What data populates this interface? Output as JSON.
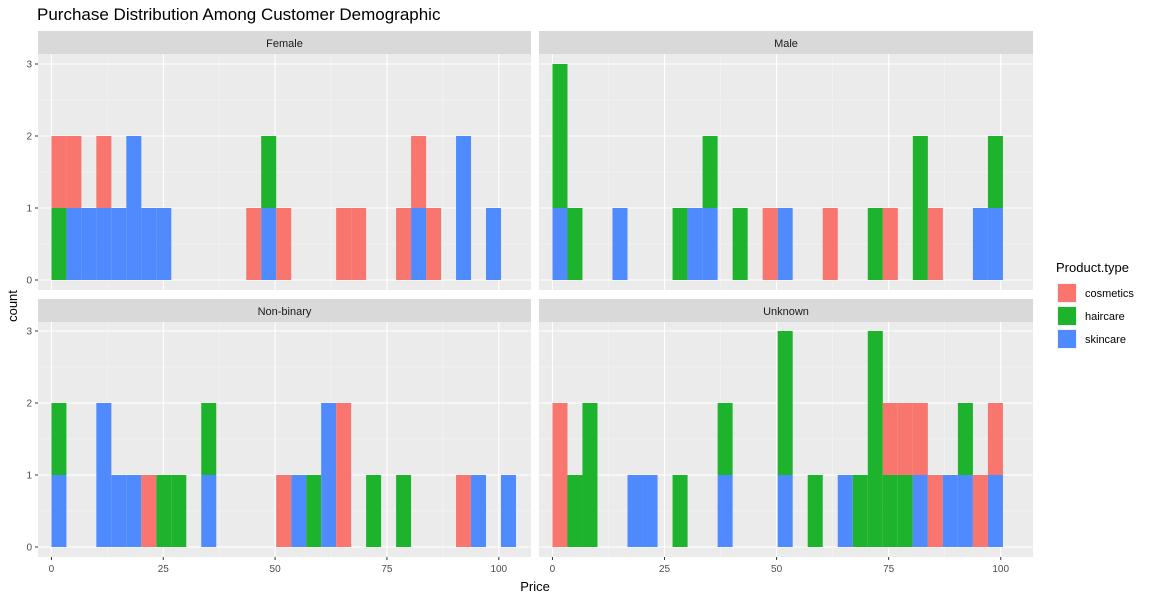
{
  "chart_data": {
    "type": "bar",
    "subtype": "faceted stacked histogram",
    "title": "Purchase Distribution Among Customer Demographic",
    "xlabel": "Price",
    "ylabel": "count",
    "xlim": [
      0,
      100
    ],
    "ylim": [
      0,
      3
    ],
    "x_ticks": [
      0,
      25,
      50,
      75,
      100
    ],
    "y_ticks": [
      0,
      1,
      2,
      3
    ],
    "bin_width": 3.35,
    "grid": true,
    "legend": {
      "title": "Product.type",
      "position": "right",
      "entries": [
        {
          "name": "cosmetics",
          "color": "#F8766D"
        },
        {
          "name": "haircare",
          "color": "#1DB32C"
        },
        {
          "name": "skincare",
          "color": "#4F8BFF"
        }
      ]
    },
    "series_names": [
      "cosmetics",
      "haircare",
      "skincare"
    ],
    "panels": [
      {
        "label": "Female",
        "bins": [
          {
            "x": 1.68,
            "cosmetics": 1,
            "haircare": 1,
            "skincare": 0
          },
          {
            "x": 5.02,
            "cosmetics": 1,
            "haircare": 0,
            "skincare": 1
          },
          {
            "x": 8.37,
            "cosmetics": 0,
            "haircare": 0,
            "skincare": 1
          },
          {
            "x": 11.72,
            "cosmetics": 1,
            "haircare": 0,
            "skincare": 1
          },
          {
            "x": 15.07,
            "cosmetics": 0,
            "haircare": 0,
            "skincare": 1
          },
          {
            "x": 18.42,
            "cosmetics": 0,
            "haircare": 0,
            "skincare": 2
          },
          {
            "x": 21.77,
            "cosmetics": 0,
            "haircare": 0,
            "skincare": 1
          },
          {
            "x": 25.12,
            "cosmetics": 0,
            "haircare": 0,
            "skincare": 1
          },
          {
            "x": 45.22,
            "cosmetics": 1,
            "haircare": 0,
            "skincare": 0
          },
          {
            "x": 48.57,
            "cosmetics": 0,
            "haircare": 1,
            "skincare": 1
          },
          {
            "x": 51.92,
            "cosmetics": 1,
            "haircare": 0,
            "skincare": 0
          },
          {
            "x": 65.32,
            "cosmetics": 1,
            "haircare": 0,
            "skincare": 0
          },
          {
            "x": 68.67,
            "cosmetics": 1,
            "haircare": 0,
            "skincare": 0
          },
          {
            "x": 78.72,
            "cosmetics": 1,
            "haircare": 0,
            "skincare": 0
          },
          {
            "x": 82.07,
            "cosmetics": 1,
            "haircare": 0,
            "skincare": 1
          },
          {
            "x": 85.42,
            "cosmetics": 1,
            "haircare": 0,
            "skincare": 0
          },
          {
            "x": 92.12,
            "cosmetics": 0,
            "haircare": 0,
            "skincare": 2
          },
          {
            "x": 98.82,
            "cosmetics": 0,
            "haircare": 0,
            "skincare": 1
          }
        ]
      },
      {
        "label": "Male",
        "bins": [
          {
            "x": 1.68,
            "cosmetics": 0,
            "haircare": 2,
            "skincare": 1
          },
          {
            "x": 5.02,
            "cosmetics": 0,
            "haircare": 1,
            "skincare": 0
          },
          {
            "x": 15.07,
            "cosmetics": 0,
            "haircare": 0,
            "skincare": 1
          },
          {
            "x": 28.47,
            "cosmetics": 0,
            "haircare": 1,
            "skincare": 0
          },
          {
            "x": 31.82,
            "cosmetics": 0,
            "haircare": 0,
            "skincare": 1
          },
          {
            "x": 35.17,
            "cosmetics": 0,
            "haircare": 1,
            "skincare": 1
          },
          {
            "x": 41.87,
            "cosmetics": 0,
            "haircare": 1,
            "skincare": 0
          },
          {
            "x": 48.57,
            "cosmetics": 1,
            "haircare": 0,
            "skincare": 0
          },
          {
            "x": 51.92,
            "cosmetics": 0,
            "haircare": 0,
            "skincare": 1
          },
          {
            "x": 61.97,
            "cosmetics": 1,
            "haircare": 0,
            "skincare": 0
          },
          {
            "x": 72.02,
            "cosmetics": 0,
            "haircare": 1,
            "skincare": 0
          },
          {
            "x": 75.37,
            "cosmetics": 1,
            "haircare": 0,
            "skincare": 0
          },
          {
            "x": 82.07,
            "cosmetics": 0,
            "haircare": 2,
            "skincare": 0
          },
          {
            "x": 85.42,
            "cosmetics": 1,
            "haircare": 0,
            "skincare": 0
          },
          {
            "x": 95.47,
            "cosmetics": 0,
            "haircare": 0,
            "skincare": 1
          },
          {
            "x": 98.82,
            "cosmetics": 0,
            "haircare": 1,
            "skincare": 1
          }
        ]
      },
      {
        "label": "Non-binary",
        "bins": [
          {
            "x": 1.68,
            "cosmetics": 0,
            "haircare": 1,
            "skincare": 1
          },
          {
            "x": 11.72,
            "cosmetics": 0,
            "haircare": 0,
            "skincare": 2
          },
          {
            "x": 15.07,
            "cosmetics": 0,
            "haircare": 0,
            "skincare": 1
          },
          {
            "x": 18.42,
            "cosmetics": 0,
            "haircare": 0,
            "skincare": 1
          },
          {
            "x": 21.77,
            "cosmetics": 1,
            "haircare": 0,
            "skincare": 0
          },
          {
            "x": 25.12,
            "cosmetics": 0,
            "haircare": 1,
            "skincare": 0
          },
          {
            "x": 28.47,
            "cosmetics": 0,
            "haircare": 1,
            "skincare": 0
          },
          {
            "x": 35.17,
            "cosmetics": 0,
            "haircare": 1,
            "skincare": 1
          },
          {
            "x": 51.92,
            "cosmetics": 1,
            "haircare": 0,
            "skincare": 0
          },
          {
            "x": 55.27,
            "cosmetics": 0,
            "haircare": 0,
            "skincare": 1
          },
          {
            "x": 58.62,
            "cosmetics": 0,
            "haircare": 1,
            "skincare": 0
          },
          {
            "x": 61.97,
            "cosmetics": 0,
            "haircare": 0,
            "skincare": 2
          },
          {
            "x": 65.32,
            "cosmetics": 2,
            "haircare": 0,
            "skincare": 0
          },
          {
            "x": 72.02,
            "cosmetics": 0,
            "haircare": 1,
            "skincare": 0
          },
          {
            "x": 78.72,
            "cosmetics": 0,
            "haircare": 1,
            "skincare": 0
          },
          {
            "x": 92.12,
            "cosmetics": 1,
            "haircare": 0,
            "skincare": 0
          },
          {
            "x": 95.47,
            "cosmetics": 0,
            "haircare": 0,
            "skincare": 1
          },
          {
            "x": 102.17,
            "cosmetics": 0,
            "haircare": 0,
            "skincare": 1
          }
        ]
      },
      {
        "label": "Unknown",
        "bins": [
          {
            "x": 1.68,
            "cosmetics": 2,
            "haircare": 0,
            "skincare": 0
          },
          {
            "x": 5.02,
            "cosmetics": 0,
            "haircare": 1,
            "skincare": 0
          },
          {
            "x": 8.37,
            "cosmetics": 0,
            "haircare": 2,
            "skincare": 0
          },
          {
            "x": 18.42,
            "cosmetics": 0,
            "haircare": 0,
            "skincare": 1
          },
          {
            "x": 21.77,
            "cosmetics": 0,
            "haircare": 0,
            "skincare": 1
          },
          {
            "x": 28.47,
            "cosmetics": 0,
            "haircare": 1,
            "skincare": 0
          },
          {
            "x": 38.52,
            "cosmetics": 0,
            "haircare": 1,
            "skincare": 1
          },
          {
            "x": 51.92,
            "cosmetics": 0,
            "haircare": 2,
            "skincare": 1
          },
          {
            "x": 58.62,
            "cosmetics": 0,
            "haircare": 1,
            "skincare": 0
          },
          {
            "x": 65.32,
            "cosmetics": 0,
            "haircare": 0,
            "skincare": 1
          },
          {
            "x": 68.67,
            "cosmetics": 0,
            "haircare": 1,
            "skincare": 0
          },
          {
            "x": 72.02,
            "cosmetics": 0,
            "haircare": 3,
            "skincare": 0
          },
          {
            "x": 75.37,
            "cosmetics": 1,
            "haircare": 1,
            "skincare": 0
          },
          {
            "x": 78.72,
            "cosmetics": 1,
            "haircare": 1,
            "skincare": 0
          },
          {
            "x": 82.07,
            "cosmetics": 1,
            "haircare": 0,
            "skincare": 1
          },
          {
            "x": 85.42,
            "cosmetics": 1,
            "haircare": 0,
            "skincare": 0
          },
          {
            "x": 88.77,
            "cosmetics": 0,
            "haircare": 0,
            "skincare": 1
          },
          {
            "x": 92.12,
            "cosmetics": 0,
            "haircare": 1,
            "skincare": 1
          },
          {
            "x": 95.47,
            "cosmetics": 1,
            "haircare": 0,
            "skincare": 0
          },
          {
            "x": 98.82,
            "cosmetics": 1,
            "haircare": 0,
            "skincare": 1
          }
        ]
      }
    ]
  }
}
